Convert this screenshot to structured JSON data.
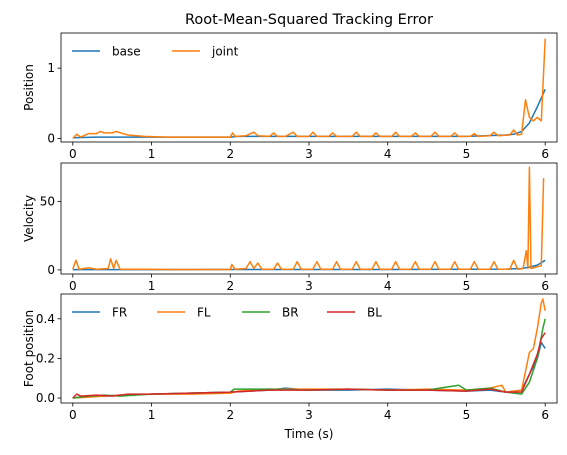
{
  "chart_data": [
    {
      "type": "line",
      "title": "Root-Mean-Squared Tracking Error",
      "xlabel": "",
      "ylabel": "Position",
      "xlim": [
        -0.15,
        6.15
      ],
      "ylim": [
        -0.05,
        1.5
      ],
      "xticks": [
        "0",
        "1",
        "2",
        "3",
        "4",
        "5",
        "6"
      ],
      "yticks": [
        {
          "v": 0,
          "label": "0"
        },
        {
          "v": 1,
          "label": "1"
        }
      ],
      "legend": "upper-left",
      "series": [
        {
          "name": "base",
          "color": "#1f77b4",
          "points": [
            [
              0,
              0.01
            ],
            [
              0.3,
              0.02
            ],
            [
              0.6,
              0.02
            ],
            [
              1.0,
              0.02
            ],
            [
              2.0,
              0.02
            ],
            [
              2.1,
              0.03
            ],
            [
              3.0,
              0.03
            ],
            [
              4.0,
              0.03
            ],
            [
              5.0,
              0.03
            ],
            [
              5.5,
              0.05
            ],
            [
              5.6,
              0.06
            ],
            [
              5.7,
              0.1
            ],
            [
              5.8,
              0.22
            ],
            [
              5.9,
              0.45
            ],
            [
              6.0,
              0.7
            ]
          ]
        },
        {
          "name": "joint",
          "color": "#ff7f0e",
          "points": [
            [
              0,
              0.0
            ],
            [
              0.05,
              0.06
            ],
            [
              0.1,
              0.02
            ],
            [
              0.2,
              0.07
            ],
            [
              0.3,
              0.07
            ],
            [
              0.35,
              0.1
            ],
            [
              0.4,
              0.08
            ],
            [
              0.5,
              0.08
            ],
            [
              0.55,
              0.1
            ],
            [
              0.7,
              0.05
            ],
            [
              0.9,
              0.03
            ],
            [
              1.2,
              0.02
            ],
            [
              1.6,
              0.02
            ],
            [
              2.0,
              0.02
            ],
            [
              2.03,
              0.08
            ],
            [
              2.06,
              0.03
            ],
            [
              2.2,
              0.04
            ],
            [
              2.3,
              0.09
            ],
            [
              2.35,
              0.04
            ],
            [
              2.5,
              0.03
            ],
            [
              2.55,
              0.08
            ],
            [
              2.6,
              0.03
            ],
            [
              2.7,
              0.03
            ],
            [
              2.8,
              0.09
            ],
            [
              2.85,
              0.03
            ],
            [
              3.0,
              0.03
            ],
            [
              3.05,
              0.09
            ],
            [
              3.1,
              0.03
            ],
            [
              3.25,
              0.03
            ],
            [
              3.3,
              0.08
            ],
            [
              3.35,
              0.03
            ],
            [
              3.55,
              0.03
            ],
            [
              3.6,
              0.09
            ],
            [
              3.65,
              0.03
            ],
            [
              3.8,
              0.03
            ],
            [
              3.85,
              0.08
            ],
            [
              3.9,
              0.03
            ],
            [
              4.05,
              0.03
            ],
            [
              4.1,
              0.09
            ],
            [
              4.15,
              0.03
            ],
            [
              4.3,
              0.03
            ],
            [
              4.35,
              0.08
            ],
            [
              4.4,
              0.03
            ],
            [
              4.55,
              0.03
            ],
            [
              4.6,
              0.09
            ],
            [
              4.65,
              0.03
            ],
            [
              4.8,
              0.03
            ],
            [
              4.85,
              0.08
            ],
            [
              4.9,
              0.03
            ],
            [
              5.05,
              0.03
            ],
            [
              5.1,
              0.07
            ],
            [
              5.15,
              0.03
            ],
            [
              5.3,
              0.04
            ],
            [
              5.35,
              0.09
            ],
            [
              5.4,
              0.04
            ],
            [
              5.55,
              0.05
            ],
            [
              5.6,
              0.12
            ],
            [
              5.65,
              0.05
            ],
            [
              5.7,
              0.06
            ],
            [
              5.75,
              0.55
            ],
            [
              5.8,
              0.3
            ],
            [
              5.85,
              0.25
            ],
            [
              5.9,
              0.3
            ],
            [
              5.95,
              0.25
            ],
            [
              6.0,
              1.42
            ]
          ]
        }
      ]
    },
    {
      "type": "line",
      "title": "",
      "xlabel": "",
      "ylabel": "Velocity",
      "xlim": [
        -0.15,
        6.15
      ],
      "ylim": [
        -3,
        78
      ],
      "xticks": [
        "0",
        "1",
        "2",
        "3",
        "4",
        "5",
        "6"
      ],
      "yticks": [
        {
          "v": 0,
          "label": "0"
        },
        {
          "v": 50,
          "label": "50"
        }
      ],
      "series": [
        {
          "name": "base",
          "color": "#1f77b4",
          "points": [
            [
              0,
              0.2
            ],
            [
              1,
              0.2
            ],
            [
              2,
              0.3
            ],
            [
              3,
              0.3
            ],
            [
              4,
              0.3
            ],
            [
              5,
              0.4
            ],
            [
              5.5,
              0.6
            ],
            [
              5.7,
              1.0
            ],
            [
              5.8,
              2.0
            ],
            [
              5.9,
              3.5
            ],
            [
              6.0,
              7.0
            ]
          ]
        },
        {
          "name": "joint",
          "color": "#ff7f0e",
          "points": [
            [
              0,
              0.5
            ],
            [
              0.04,
              7
            ],
            [
              0.08,
              0.5
            ],
            [
              0.2,
              1.5
            ],
            [
              0.3,
              0.5
            ],
            [
              0.45,
              1
            ],
            [
              0.48,
              8
            ],
            [
              0.52,
              1
            ],
            [
              0.55,
              7
            ],
            [
              0.6,
              0.5
            ],
            [
              0.9,
              0.5
            ],
            [
              1.2,
              0.3
            ],
            [
              1.6,
              0.3
            ],
            [
              2.0,
              0.3
            ],
            [
              2.02,
              4
            ],
            [
              2.06,
              0.5
            ],
            [
              2.2,
              1
            ],
            [
              2.25,
              6
            ],
            [
              2.3,
              1
            ],
            [
              2.35,
              5
            ],
            [
              2.4,
              0.5
            ],
            [
              2.55,
              0.5
            ],
            [
              2.6,
              5
            ],
            [
              2.65,
              0.5
            ],
            [
              2.8,
              0.5
            ],
            [
              2.85,
              6
            ],
            [
              2.9,
              0.5
            ],
            [
              3.05,
              0.5
            ],
            [
              3.1,
              6
            ],
            [
              3.15,
              0.5
            ],
            [
              3.3,
              0.5
            ],
            [
              3.35,
              6
            ],
            [
              3.4,
              0.5
            ],
            [
              3.55,
              0.5
            ],
            [
              3.6,
              6
            ],
            [
              3.65,
              0.5
            ],
            [
              3.8,
              0.5
            ],
            [
              3.85,
              6
            ],
            [
              3.9,
              0.5
            ],
            [
              4.05,
              0.5
            ],
            [
              4.1,
              6
            ],
            [
              4.15,
              0.5
            ],
            [
              4.3,
              0.5
            ],
            [
              4.35,
              6
            ],
            [
              4.4,
              0.5
            ],
            [
              4.55,
              0.5
            ],
            [
              4.6,
              6
            ],
            [
              4.65,
              0.5
            ],
            [
              4.8,
              0.5
            ],
            [
              4.85,
              6
            ],
            [
              4.9,
              0.5
            ],
            [
              5.05,
              0.5
            ],
            [
              5.1,
              6
            ],
            [
              5.15,
              0.5
            ],
            [
              5.3,
              0.5
            ],
            [
              5.35,
              6
            ],
            [
              5.4,
              0.5
            ],
            [
              5.55,
              0.5
            ],
            [
              5.6,
              7
            ],
            [
              5.65,
              0.5
            ],
            [
              5.72,
              1
            ],
            [
              5.76,
              14
            ],
            [
              5.78,
              1
            ],
            [
              5.8,
              75
            ],
            [
              5.82,
              1
            ],
            [
              5.88,
              2
            ],
            [
              5.95,
              3
            ],
            [
              5.98,
              67
            ]
          ]
        }
      ]
    },
    {
      "type": "line",
      "title": "",
      "xlabel": "Time (s)",
      "ylabel": "Foot position",
      "xlim": [
        -0.15,
        6.15
      ],
      "ylim": [
        -0.025,
        0.525
      ],
      "xticks": [
        "0",
        "1",
        "2",
        "3",
        "4",
        "5",
        "6"
      ],
      "yticks": [
        {
          "v": 0,
          "label": "0.0"
        },
        {
          "v": 0.2,
          "label": "0.2"
        },
        {
          "v": 0.4,
          "label": "0.4"
        }
      ],
      "legend": "upper-left",
      "series": [
        {
          "name": "FR",
          "color": "#1f77b4",
          "points": [
            [
              0,
              0.0
            ],
            [
              0.2,
              0.01
            ],
            [
              0.4,
              0.01
            ],
            [
              0.6,
              0.015
            ],
            [
              1.0,
              0.02
            ],
            [
              1.5,
              0.025
            ],
            [
              2.0,
              0.03
            ],
            [
              2.5,
              0.04
            ],
            [
              2.7,
              0.05
            ],
            [
              3.0,
              0.04
            ],
            [
              3.5,
              0.04
            ],
            [
              4.0,
              0.045
            ],
            [
              4.5,
              0.04
            ],
            [
              5.0,
              0.035
            ],
            [
              5.3,
              0.04
            ],
            [
              5.5,
              0.03
            ],
            [
              5.7,
              0.04
            ],
            [
              5.8,
              0.12
            ],
            [
              5.9,
              0.2
            ],
            [
              5.95,
              0.28
            ],
            [
              6.0,
              0.25
            ]
          ]
        },
        {
          "name": "FL",
          "color": "#ff7f0e",
          "points": [
            [
              0,
              0.0
            ],
            [
              0.2,
              0.005
            ],
            [
              0.4,
              0.01
            ],
            [
              0.6,
              0.015
            ],
            [
              1.0,
              0.02
            ],
            [
              1.5,
              0.02
            ],
            [
              2.0,
              0.025
            ],
            [
              2.1,
              0.035
            ],
            [
              2.5,
              0.045
            ],
            [
              3.0,
              0.045
            ],
            [
              3.5,
              0.045
            ],
            [
              4.0,
              0.04
            ],
            [
              4.5,
              0.045
            ],
            [
              5.0,
              0.04
            ],
            [
              5.3,
              0.05
            ],
            [
              5.45,
              0.065
            ],
            [
              5.5,
              0.03
            ],
            [
              5.7,
              0.04
            ],
            [
              5.8,
              0.23
            ],
            [
              5.85,
              0.25
            ],
            [
              5.9,
              0.35
            ],
            [
              5.95,
              0.48
            ],
            [
              5.97,
              0.5
            ],
            [
              6.0,
              0.44
            ]
          ]
        },
        {
          "name": "BR",
          "color": "#2ca02c",
          "points": [
            [
              0,
              0.0
            ],
            [
              0.2,
              0.01
            ],
            [
              0.4,
              0.015
            ],
            [
              0.6,
              0.01
            ],
            [
              1.0,
              0.02
            ],
            [
              1.5,
              0.025
            ],
            [
              2.0,
              0.03
            ],
            [
              2.05,
              0.045
            ],
            [
              2.5,
              0.045
            ],
            [
              3.0,
              0.04
            ],
            [
              3.5,
              0.045
            ],
            [
              4.0,
              0.04
            ],
            [
              4.5,
              0.04
            ],
            [
              4.9,
              0.065
            ],
            [
              5.0,
              0.04
            ],
            [
              5.3,
              0.05
            ],
            [
              5.5,
              0.03
            ],
            [
              5.7,
              0.02
            ],
            [
              5.8,
              0.08
            ],
            [
              5.9,
              0.2
            ],
            [
              5.97,
              0.35
            ],
            [
              6.0,
              0.4
            ]
          ]
        },
        {
          "name": "BL",
          "color": "#d62728",
          "points": [
            [
              0,
              0.0
            ],
            [
              0.05,
              0.02
            ],
            [
              0.1,
              0.01
            ],
            [
              0.3,
              0.015
            ],
            [
              0.5,
              0.01
            ],
            [
              0.7,
              0.02
            ],
            [
              1.0,
              0.02
            ],
            [
              1.5,
              0.025
            ],
            [
              2.0,
              0.03
            ],
            [
              2.5,
              0.04
            ],
            [
              3.0,
              0.04
            ],
            [
              3.5,
              0.045
            ],
            [
              4.0,
              0.04
            ],
            [
              4.5,
              0.04
            ],
            [
              5.0,
              0.035
            ],
            [
              5.3,
              0.045
            ],
            [
              5.5,
              0.03
            ],
            [
              5.7,
              0.03
            ],
            [
              5.8,
              0.12
            ],
            [
              5.9,
              0.22
            ],
            [
              5.95,
              0.3
            ],
            [
              6.0,
              0.33
            ]
          ]
        }
      ]
    }
  ]
}
